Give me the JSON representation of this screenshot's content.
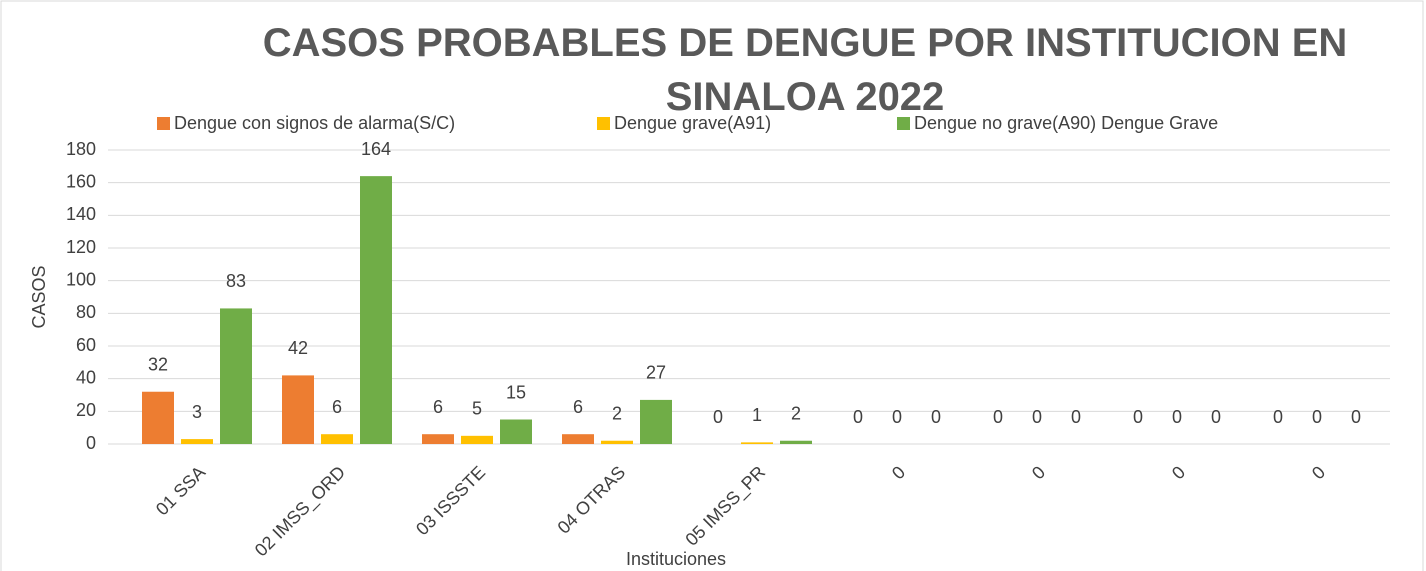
{
  "chart_data": {
    "type": "bar",
    "title": "CASOS PROBABLES DE DENGUE POR INSTITUCION EN SINALOA 2022",
    "x_label": "Instituciones",
    "y_label": "CASOS",
    "categories": [
      "01 SSA",
      "02 IMSS_ORD",
      "03 ISSSTE",
      "04 OTRAS",
      "05 IMSS_PR",
      "0",
      "0",
      "0",
      "0"
    ],
    "series": [
      {
        "name": "Dengue con signos de alarma(S/C)",
        "color": "#ed7d31",
        "values": [
          32,
          42,
          6,
          6,
          0,
          0,
          0,
          0,
          0
        ]
      },
      {
        "name": "Dengue grave(A91)",
        "color": "#ffc000",
        "values": [
          3,
          6,
          5,
          2,
          1,
          0,
          0,
          0,
          0
        ]
      },
      {
        "name": "Dengue no grave(A90) Dengue Grave",
        "color": "#70ad47",
        "values": [
          83,
          164,
          15,
          27,
          2,
          0,
          0,
          0,
          0
        ]
      }
    ],
    "ylim": [
      0,
      180
    ],
    "yticks": [
      0,
      20,
      40,
      60,
      80,
      100,
      120,
      140,
      160,
      180
    ],
    "grid": true,
    "legend": "top"
  }
}
